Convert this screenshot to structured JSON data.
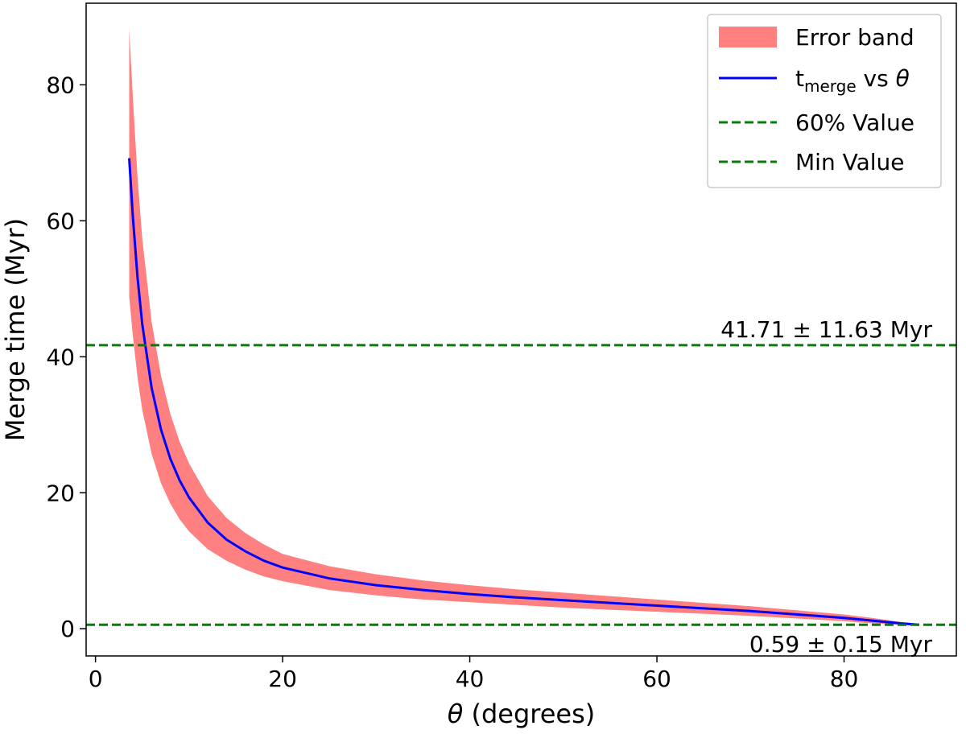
{
  "chart_data": {
    "type": "line",
    "xlabel_symbol": "θ",
    "xlabel_rest": " (degrees)",
    "ylabel": "Merge time (Myr)",
    "xlim": [
      -1,
      92
    ],
    "ylim": [
      -4,
      92
    ],
    "xticks": [
      0,
      20,
      40,
      60,
      80
    ],
    "yticks": [
      0,
      20,
      40,
      60,
      80
    ],
    "grid": false,
    "legend_position": "top-right",
    "theta_range": [
      3.6,
      88
    ],
    "curve": {
      "name": "t_merge vs θ",
      "color": "#0000ff",
      "x": [
        3.6,
        4,
        4.5,
        5,
        6,
        7,
        8,
        9,
        10,
        12,
        14,
        16,
        18,
        20,
        25,
        30,
        35,
        40,
        45,
        50,
        55,
        60,
        65,
        70,
        75,
        80,
        83,
        86,
        88
      ],
      "y": [
        69.2,
        60.5,
        51.6,
        44.8,
        35.4,
        29.3,
        25.0,
        21.8,
        19.3,
        15.6,
        13.1,
        11.4,
        10.0,
        9.0,
        7.4,
        6.4,
        5.7,
        5.1,
        4.6,
        4.2,
        3.8,
        3.4,
        3.0,
        2.6,
        2.1,
        1.6,
        1.2,
        0.8,
        0.59
      ]
    },
    "error_band": {
      "name": "Error band",
      "color": "#ff8080",
      "x": [
        3.6,
        4,
        4.5,
        5,
        6,
        7,
        8,
        9,
        10,
        12,
        14,
        16,
        18,
        20,
        25,
        30,
        35,
        40,
        45,
        50,
        55,
        60,
        65,
        70,
        75,
        80,
        83,
        86,
        88
      ],
      "lower": [
        48.8,
        43.0,
        36.9,
        32.2,
        25.7,
        21.4,
        18.4,
        16.1,
        14.3,
        11.7,
        10.0,
        8.7,
        7.7,
        7.0,
        5.7,
        4.9,
        4.3,
        3.9,
        3.5,
        3.1,
        2.8,
        2.5,
        2.2,
        1.9,
        1.5,
        1.1,
        0.8,
        0.6,
        0.44
      ],
      "upper": [
        88.2,
        78.0,
        66.3,
        57.4,
        45.1,
        37.2,
        31.6,
        27.5,
        24.3,
        19.5,
        16.3,
        14.1,
        12.4,
        11.0,
        9.2,
        8.0,
        7.1,
        6.4,
        5.8,
        5.3,
        4.8,
        4.3,
        3.8,
        3.3,
        2.7,
        2.1,
        1.6,
        1.0,
        0.74
      ]
    },
    "hlines": [
      {
        "name": "60% Value",
        "y": 41.71,
        "color": "#008000",
        "label": "41.71 ± 11.63 Myr"
      },
      {
        "name": "Min Value",
        "y": 0.59,
        "color": "#008000",
        "label": "0.59 ± 0.15 Myr"
      }
    ],
    "legend": [
      {
        "type": "patch",
        "label": "Error band",
        "color": "#ff8080"
      },
      {
        "type": "line",
        "label_main": "t",
        "label_sub": "merge",
        "label_rest": " vs ",
        "label_sym": "θ",
        "color": "#0000ff"
      },
      {
        "type": "dashed",
        "label": "60% Value",
        "color": "#008000"
      },
      {
        "type": "dashed",
        "label": "Min Value",
        "color": "#008000"
      }
    ]
  }
}
